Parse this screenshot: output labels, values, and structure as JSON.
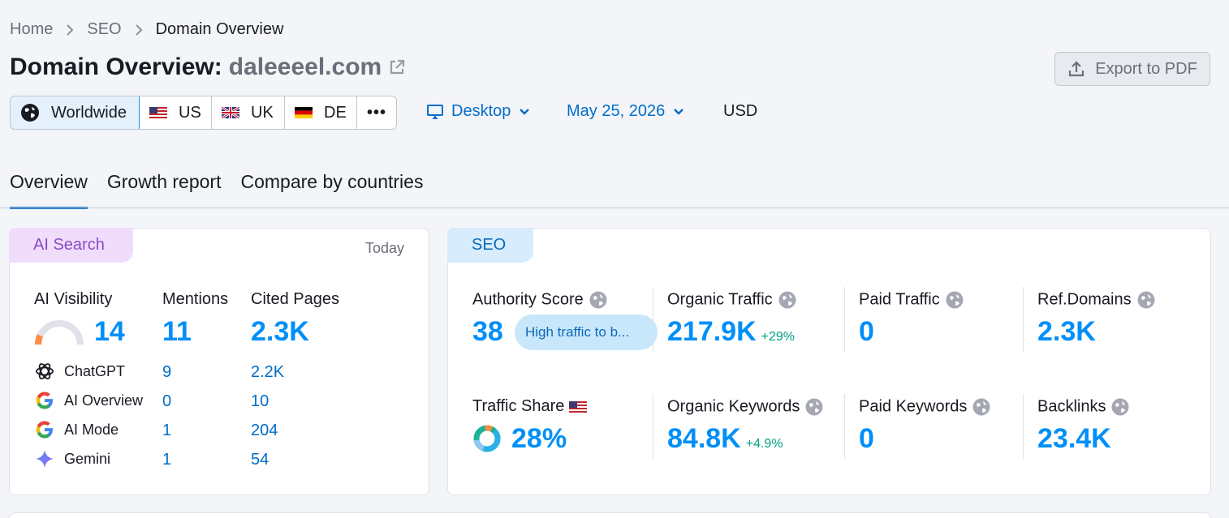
{
  "breadcrumb": {
    "home": "Home",
    "seo": "SEO",
    "current": "Domain Overview"
  },
  "header": {
    "title": "Domain Overview:",
    "domain": "daleeeel.com",
    "export_label": "Export to PDF"
  },
  "countries": [
    {
      "label": "Worldwide",
      "icon": "globe-icon"
    },
    {
      "label": "US",
      "icon": "us-flag-icon"
    },
    {
      "label": "UK",
      "icon": "uk-flag-icon"
    },
    {
      "label": "DE",
      "icon": "de-flag-icon"
    }
  ],
  "more_label": "•••",
  "filters": {
    "device": "Desktop",
    "date": "May 25, 2026",
    "currency": "USD"
  },
  "tabs": [
    "Overview",
    "Growth report",
    "Compare by countries"
  ],
  "ai_search": {
    "tag": "AI Search",
    "date_label": "Today",
    "visibility_label": "AI Visibility",
    "visibility_value": "14",
    "visibility_level": 0.14,
    "mentions_label": "Mentions",
    "mentions_value": "11",
    "cited_label": "Cited Pages",
    "cited_value": "2.3K",
    "rows": [
      {
        "name": "ChatGPT",
        "icon": "chatgpt-icon",
        "mentions": "9",
        "cited": "2.2K"
      },
      {
        "name": "AI Overview",
        "icon": "google-icon",
        "mentions": "0",
        "cited": "10"
      },
      {
        "name": "AI Mode",
        "icon": "google-icon",
        "mentions": "1",
        "cited": "204"
      },
      {
        "name": "Gemini",
        "icon": "gemini-icon",
        "mentions": "1",
        "cited": "54"
      }
    ]
  },
  "seo": {
    "tag": "SEO",
    "authority": {
      "label": "Authority Score",
      "value": "38",
      "pill": "High traffic to b..."
    },
    "organic_traffic": {
      "label": "Organic Traffic",
      "value": "217.9K",
      "delta": "+29%"
    },
    "paid_traffic": {
      "label": "Paid Traffic",
      "value": "0"
    },
    "ref_domains": {
      "label": "Ref.Domains",
      "value": "2.3K"
    },
    "traffic_share": {
      "label": "Traffic Share",
      "value": "28%"
    },
    "organic_keywords": {
      "label": "Organic Keywords",
      "value": "84.8K",
      "delta": "+4.9%"
    },
    "paid_keywords": {
      "label": "Paid Keywords",
      "value": "0"
    },
    "backlinks": {
      "label": "Backlinks",
      "value": "23.4K"
    }
  },
  "colors": {
    "accent": "#008ff8",
    "link": "#006dca",
    "positive": "#009f81",
    "ai_tag": "#f0ddfb",
    "seo_tag": "#d7ecfc"
  }
}
